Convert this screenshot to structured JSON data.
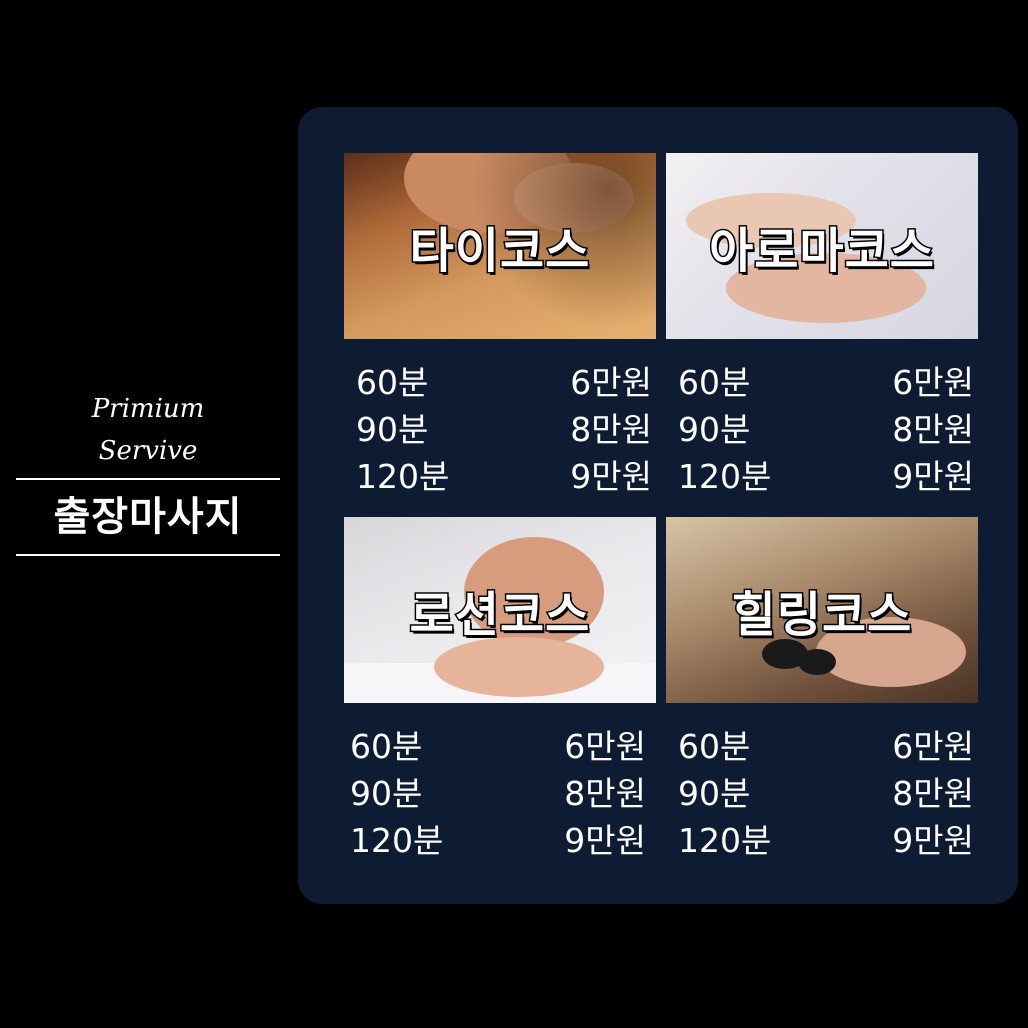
{
  "brand": {
    "line1": "Primium",
    "line2": "Servive",
    "title": "출장마사지"
  },
  "courses": [
    {
      "name": "타이코스",
      "prices": [
        {
          "duration": "60분",
          "price": "6만원"
        },
        {
          "duration": "90분",
          "price": "8만원"
        },
        {
          "duration": "120분",
          "price": "9만원"
        }
      ]
    },
    {
      "name": "아로마코스",
      "prices": [
        {
          "duration": "60분",
          "price": "6만원"
        },
        {
          "duration": "90분",
          "price": "8만원"
        },
        {
          "duration": "120분",
          "price": "9만원"
        }
      ]
    },
    {
      "name": "로션코스",
      "prices": [
        {
          "duration": "60분",
          "price": "6만원"
        },
        {
          "duration": "90분",
          "price": "8만원"
        },
        {
          "duration": "120분",
          "price": "9만원"
        }
      ]
    },
    {
      "name": "힐링코스",
      "prices": [
        {
          "duration": "60분",
          "price": "6만원"
        },
        {
          "duration": "90분",
          "price": "8만원"
        },
        {
          "duration": "120분",
          "price": "9만원"
        }
      ]
    }
  ],
  "colors": {
    "background": "#000000",
    "panel": "#0d1b33",
    "text": "#ffffff"
  }
}
